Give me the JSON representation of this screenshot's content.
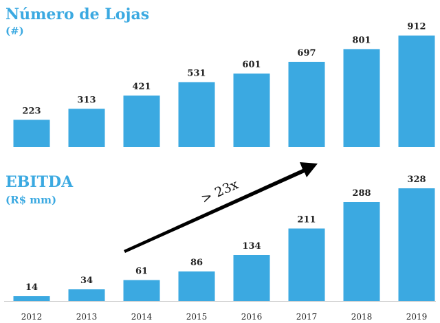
{
  "chart_data": [
    {
      "type": "bar",
      "title": "Número de Lojas",
      "subtitle": "(#)",
      "values": [
        223,
        313,
        421,
        531,
        601,
        697,
        801,
        912
      ],
      "color": "#3ba9e1"
    },
    {
      "type": "bar",
      "title": "EBITDA",
      "subtitle": "(R$ mm)",
      "categories": [
        "2012",
        "2013",
        "2014",
        "2015",
        "2016",
        "2017",
        "2018",
        "2019"
      ],
      "values": [
        14,
        34,
        61,
        86,
        134,
        211,
        288,
        328
      ],
      "color": "#3ba9e1",
      "annotation": "> 23x"
    }
  ]
}
